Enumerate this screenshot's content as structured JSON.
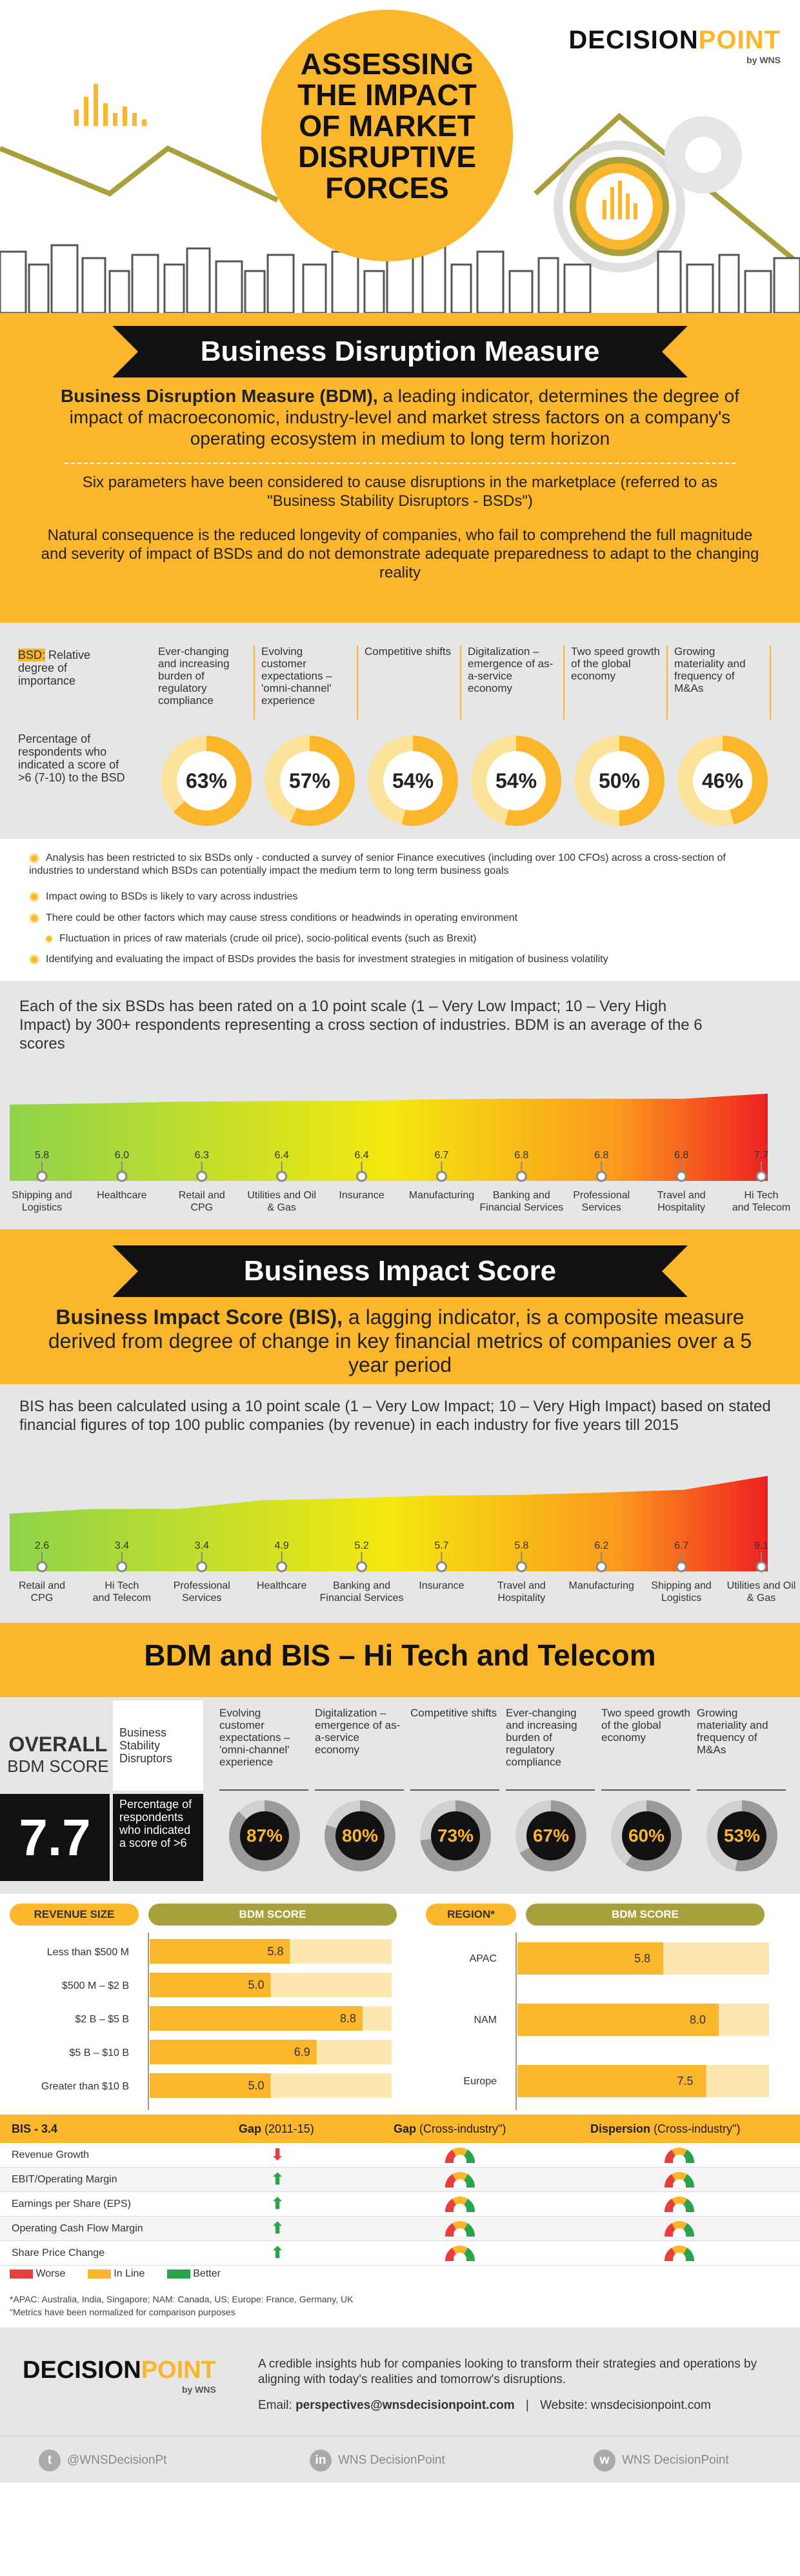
{
  "brand": {
    "name1": "DECISION",
    "name2": "POINT",
    "by": "by WNS"
  },
  "title": {
    "l1": "ASSESSING",
    "l2": "THE IMPACT",
    "l3": "OF MARKET",
    "l4": "DISRUPTIVE",
    "l5": "FORCES"
  },
  "bdm": {
    "heading": "Business Disruption Measure",
    "def_bold": "Business Disruption Measure (BDM),",
    "def_rest": " a leading indicator, determines the degree of impact of macroeconomic, industry-level and market stress factors on a company's operating ecosystem in medium to long term horizon",
    "six": "Six parameters have been considered to cause disruptions in the marketplace (referred to as \"Business Stability Disruptors - BSDs\")",
    "natural": "Natural consequence is the reduced longevity of companies, who fail to comprehend the full magnitude and severity of impact of BSDs and do not demonstrate adequate preparedness to adapt to the changing reality",
    "rel_label_a": "BSD:",
    "rel_label_b": " Relative degree of importance",
    "pct_label": "Percentage of respondents who indicated a score of >6 (7-10) to the BSD",
    "bsds": [
      {
        "name": "Ever-changing and increasing burden of regulatory compliance",
        "pct": "63%",
        "v": 63
      },
      {
        "name": "Evolving customer expectations – 'omni-channel' experience",
        "pct": "57%",
        "v": 57
      },
      {
        "name": "Competitive shifts",
        "pct": "54%",
        "v": 54
      },
      {
        "name": "Digitalization – emergence of as-a-service economy",
        "pct": "54%",
        "v": 54
      },
      {
        "name": "Two speed growth of the global economy",
        "pct": "50%",
        "v": 50
      },
      {
        "name": "Growing materiality and frequency of M&As",
        "pct": "46%",
        "v": 46
      }
    ],
    "bullets": [
      "Analysis has been restricted to six BSDs only - conducted a survey of senior Finance executives (including over 100 CFOs) across a cross-section of industries to understand which BSDs can potentially impact the medium term to long term business goals",
      "Impact owing to BSDs is likely to vary across industries",
      "There could be other factors which may cause stress conditions or headwinds in operating environment",
      "Fluctuation in prices of raw materials (crude oil price), socio-political events (such as Brexit)",
      "Identifying and evaluating the impact of BSDs provides the basis for investment strategies in mitigation of business volatility"
    ],
    "scale_text": "Each of the six BSDs has been rated on a 10 point scale (1 – Very Low Impact; 10 – Very High Impact) by 300+ respondents representing a cross section of industries. BDM is an average of the 6 scores"
  },
  "bis": {
    "heading": "Business Impact Score",
    "def_bold": "Business Impact Score (BIS),",
    "def_rest": " a lagging indicator, is a composite measure derived from degree of change in key financial metrics of companies over a 5 year period",
    "scale_text": "BIS has been calculated using a 10 point scale (1 – Very Low Impact; 10 – Very High Impact) based on stated financial figures of top 100 public companies (by revenue) in each industry for five years till 2015"
  },
  "chart_data": [
    {
      "type": "area",
      "categories": [
        "Shipping and Logistics",
        "Healthcare",
        "Retail and CPG",
        "Utilities and Oil & Gas",
        "Insurance",
        "Manufacturing",
        "Banking and Financial Services",
        "Professional Services",
        "Travel and Hospitality",
        "Hi Tech and Telecom"
      ],
      "values": [
        5.8,
        6.0,
        6.3,
        6.4,
        6.4,
        6.7,
        6.8,
        6.8,
        6.8,
        7.7
      ],
      "labels": [
        "5.8",
        "6.0",
        "6.3",
        "6.4",
        "6.4",
        "6.7",
        "6.8",
        "6.8",
        "6.8",
        "7.7"
      ]
    },
    {
      "type": "area",
      "categories": [
        "Retail and CPG",
        "Hi Tech and Telecom",
        "Professional Services",
        "Healthcare",
        "Banking and Financial Services",
        "Insurance",
        "Travel and Hospitality",
        "Manufacturing",
        "Shipping and Logistics",
        "Utilities and Oil & Gas"
      ],
      "values": [
        2.6,
        3.4,
        3.4,
        4.9,
        5.2,
        5.7,
        5.8,
        6.2,
        6.7,
        9.1
      ],
      "labels": [
        "2.6",
        "3.4",
        "3.4",
        "4.9",
        "5.2",
        "5.7",
        "5.8",
        "6.2",
        "6.7",
        "9.1"
      ]
    },
    {
      "type": "bar",
      "title": "BDM SCORE",
      "xlabel": "REVENUE SIZE",
      "categories": [
        "Less than $500 M",
        "$500 M – $2 B",
        "$2 B – $5 B",
        "$5 B – $10 B",
        "Greater than $10 B"
      ],
      "values": [
        5.8,
        5.0,
        8.8,
        6.9,
        5.0
      ],
      "labels": [
        "5.8",
        "5.0",
        "8.8",
        "6.9",
        "5.0"
      ],
      "xlim": [
        0,
        10
      ]
    },
    {
      "type": "bar",
      "title": "BDM SCORE",
      "xlabel": "REGION*",
      "categories": [
        "APAC",
        "NAM",
        "Europe"
      ],
      "values": [
        5.8,
        8.0,
        7.5
      ],
      "labels": [
        "5.8",
        "8.0",
        "7.5"
      ],
      "xlim": [
        0,
        10
      ]
    }
  ],
  "hitech": {
    "heading": "BDM and BIS – Hi Tech and Telecom",
    "overall1": "OVERALL",
    "overall2": "BDM SCORE",
    "overall_val": "7.7",
    "bsd_label": "Business Stability Disruptors",
    "pct_label": "Percentage of respondents who indicated a score of >6",
    "bsds": [
      {
        "name": "Evolving customer expectations – 'omni-channel' experience",
        "pct": "87%",
        "v": 87
      },
      {
        "name": "Digitalization – emergence of as-a-service economy",
        "pct": "80%",
        "v": 80
      },
      {
        "name": "Competitive shifts",
        "pct": "73%",
        "v": 73
      },
      {
        "name": "Ever-changing and increasing burden of regulatory compliance",
        "pct": "67%",
        "v": 67
      },
      {
        "name": "Two speed growth of the global economy",
        "pct": "60%",
        "v": 60
      },
      {
        "name": "Growing materiality and frequency of M&As",
        "pct": "53%",
        "v": 53
      }
    ],
    "rev_head": "REVENUE SIZE",
    "region_head": "REGION*",
    "score_head": "BDM SCORE",
    "table": {
      "h0": "BIS - 3.4",
      "h1": "Gap",
      "h1s": " (2011-15)",
      "h2": "Gap",
      "h2s": " (Cross-industry\")",
      "h3": "Dispersion",
      "h3s": " (Cross-industry\")",
      "rows": [
        {
          "metric": "Revenue Growth",
          "gap": "down"
        },
        {
          "metric": "EBIT/Operating Margin",
          "gap": "up"
        },
        {
          "metric": "Earnings per Share (EPS)",
          "gap": "up"
        },
        {
          "metric": "Operating Cash Flow Margin",
          "gap": "up"
        },
        {
          "metric": "Share Price Change",
          "gap": "up"
        }
      ],
      "legend": [
        {
          "label": "Worse",
          "color": "#e93e3e"
        },
        {
          "label": "In Line",
          "color": "#fbb62b"
        },
        {
          "label": "Better",
          "color": "#2aa44a"
        }
      ]
    },
    "note1": "*APAC: Australia, India, Singapore; NAM: Canada, US; Europe: France, Germany, UK",
    "note2": "\"Metrics have been normalized for comparison purposes"
  },
  "footer": {
    "desc": "A credible insights hub for companies looking to transform their strategies and operations by aligning with today's realities and tomorrow's disruptions.",
    "email_label": "Email: ",
    "email": "perspectives@wnsdecisionpoint.com",
    "sep": "|",
    "web": "Website: wnsdecisionpoint.com",
    "twitter": "@WNSDecisionPt",
    "linkedin": "WNS DecisionPoint",
    "other": "WNS DecisionPoint"
  },
  "colors": {
    "accent": "#fbb62b",
    "dark": "#111111",
    "olive": "#a8a03c",
    "grey": "#e6e6e6"
  }
}
